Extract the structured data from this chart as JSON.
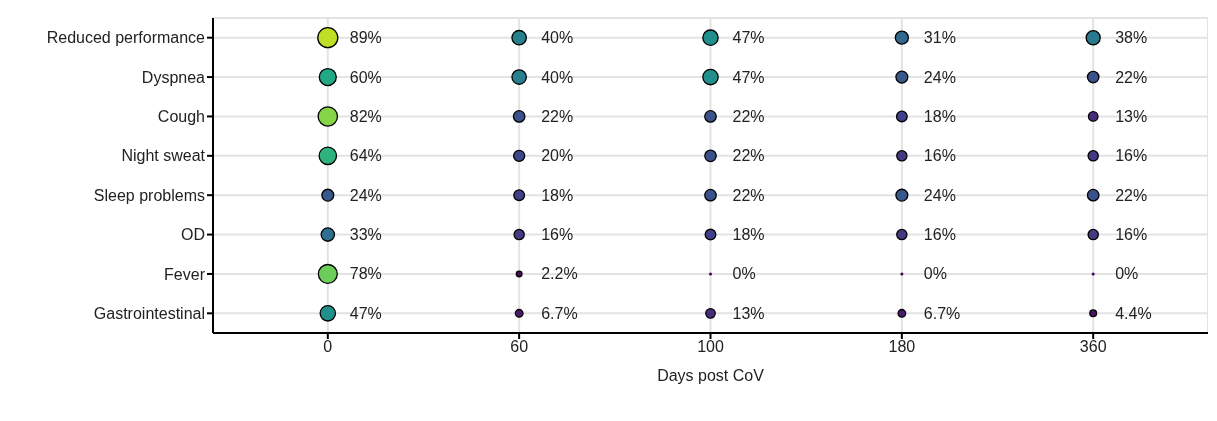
{
  "chart_data": {
    "type": "heatmap",
    "xlabel": "Days post CoV",
    "grid": true,
    "categories": [
      "0",
      "60",
      "100",
      "180",
      "360"
    ],
    "y_categories": [
      "Reduced performance",
      "Dyspnea",
      "Cough",
      "Night sweat",
      "Sleep problems",
      "OD",
      "Fever",
      "Gastrointestinal"
    ],
    "cells": [
      [
        89,
        40,
        47,
        31,
        38
      ],
      [
        60,
        40,
        47,
        24,
        22
      ],
      [
        82,
        22,
        22,
        18,
        13
      ],
      [
        64,
        20,
        22,
        16,
        16
      ],
      [
        24,
        18,
        22,
        24,
        22
      ],
      [
        33,
        16,
        18,
        16,
        16
      ],
      [
        78,
        2.2,
        0,
        0,
        0
      ],
      [
        47,
        6.7,
        13,
        6.7,
        4.4
      ]
    ],
    "colors": [
      [
        "#bddf26",
        "#27808e",
        "#21908d",
        "#31688e",
        "#297a8e"
      ],
      [
        "#22a884",
        "#27808e",
        "#21908d",
        "#38598c",
        "#3b518b"
      ],
      [
        "#86d549",
        "#3b518b",
        "#3b518b",
        "#41408a",
        "#472d7b"
      ],
      [
        "#2eb37c",
        "#3e4989",
        "#3b518b",
        "#433a83",
        "#433a83"
      ],
      [
        "#38598c",
        "#41408a",
        "#3b518b",
        "#38598c",
        "#3b518b"
      ],
      [
        "#2e6e8e",
        "#433a83",
        "#41408a",
        "#433a83",
        "#433a83"
      ],
      [
        "#6ccd5a",
        "#450a5c",
        "#440154",
        "#440154",
        "#440154"
      ],
      [
        "#21908d",
        "#471a6c",
        "#472d7b",
        "#471a6c",
        "#461465"
      ]
    ],
    "cell_labels": [
      [
        "89%",
        "40%",
        "47%",
        "31%",
        "38%"
      ],
      [
        "60%",
        "40%",
        "47%",
        "24%",
        "22%"
      ],
      [
        "82%",
        "22%",
        "22%",
        "18%",
        "13%"
      ],
      [
        "64%",
        "20%",
        "22%",
        "16%",
        "16%"
      ],
      [
        "24%",
        "18%",
        "22%",
        "24%",
        "22%"
      ],
      [
        "33%",
        "16%",
        "18%",
        "16%",
        "16%"
      ],
      [
        "78%",
        "2.2%",
        "0%",
        "0%",
        "0%"
      ],
      [
        "47%",
        "6.7%",
        "13%",
        "6.7%",
        "4.4%"
      ]
    ]
  }
}
